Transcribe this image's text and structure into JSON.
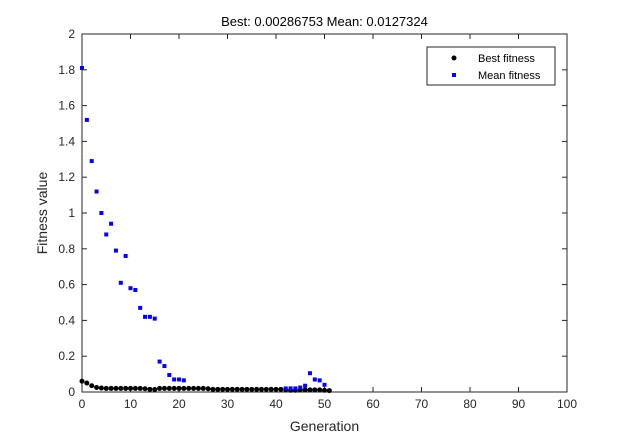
{
  "chart_data": {
    "type": "scatter",
    "title": "Best: 0.00286753  Mean: 0.0127324",
    "xlabel": "Generation",
    "ylabel": "Fitness value",
    "xlim": [
      0,
      100
    ],
    "ylim": [
      0,
      2
    ],
    "xticks": [
      "0",
      "10",
      "20",
      "30",
      "40",
      "50",
      "60",
      "70",
      "80",
      "90",
      "100"
    ],
    "yticks": [
      "0",
      "0.2",
      "0.4",
      "0.6",
      "0.8",
      "1",
      "1.2",
      "1.4",
      "1.6",
      "1.8",
      "2"
    ],
    "grid": false,
    "legend_position": "top-right",
    "series": [
      {
        "name": "Best fitness",
        "color": "#000000",
        "marker": "circle",
        "x": [
          0,
          1,
          2,
          3,
          4,
          5,
          6,
          7,
          8,
          9,
          10,
          11,
          12,
          13,
          14,
          15,
          16,
          17,
          18,
          19,
          20,
          21,
          22,
          23,
          24,
          25,
          26,
          27,
          28,
          29,
          30,
          31,
          32,
          33,
          34,
          35,
          36,
          37,
          38,
          39,
          40,
          41,
          42,
          43,
          44,
          45,
          46,
          47,
          48,
          49,
          50,
          51
        ],
        "y": [
          0.06,
          0.05,
          0.035,
          0.025,
          0.022,
          0.02,
          0.02,
          0.02,
          0.02,
          0.02,
          0.02,
          0.02,
          0.02,
          0.018,
          0.015,
          0.014,
          0.02,
          0.02,
          0.02,
          0.02,
          0.02,
          0.02,
          0.02,
          0.02,
          0.02,
          0.02,
          0.018,
          0.015,
          0.015,
          0.015,
          0.015,
          0.015,
          0.015,
          0.015,
          0.015,
          0.015,
          0.015,
          0.015,
          0.015,
          0.015,
          0.015,
          0.015,
          0.012,
          0.01,
          0.01,
          0.012,
          0.012,
          0.012,
          0.012,
          0.012,
          0.01,
          0.008
        ]
      },
      {
        "name": "Mean fitness",
        "color": "#0000ff",
        "marker": "square",
        "x": [
          0,
          1,
          2,
          3,
          4,
          5,
          6,
          7,
          8,
          9,
          10,
          11,
          12,
          13,
          14,
          15,
          16,
          17,
          18,
          19,
          20,
          21,
          42,
          43,
          44,
          45,
          46,
          47,
          48,
          49,
          50
        ],
        "y": [
          1.81,
          1.52,
          1.29,
          1.12,
          1.0,
          0.88,
          0.94,
          0.79,
          0.61,
          0.76,
          0.58,
          0.57,
          0.47,
          0.42,
          0.42,
          0.41,
          0.17,
          0.145,
          0.095,
          0.07,
          0.07,
          0.065,
          0.02,
          0.02,
          0.02,
          0.025,
          0.035,
          0.105,
          0.07,
          0.065,
          0.04
        ]
      }
    ]
  }
}
